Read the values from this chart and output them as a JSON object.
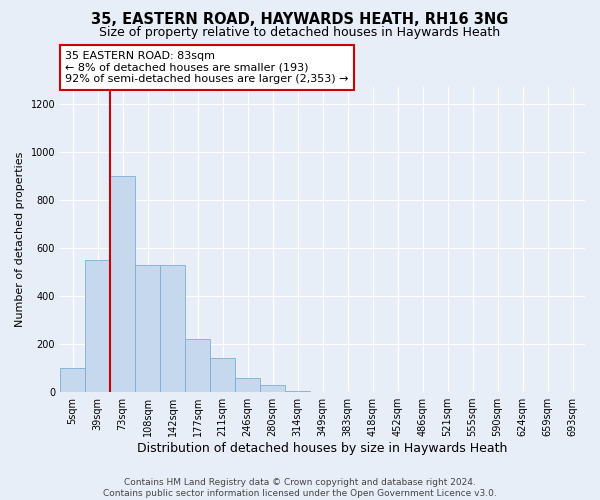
{
  "title": "35, EASTERN ROAD, HAYWARDS HEATH, RH16 3NG",
  "subtitle": "Size of property relative to detached houses in Haywards Heath",
  "xlabel": "Distribution of detached houses by size in Haywards Heath",
  "ylabel": "Number of detached properties",
  "footer_line1": "Contains HM Land Registry data © Crown copyright and database right 2024.",
  "footer_line2": "Contains public sector information licensed under the Open Government Licence v3.0.",
  "bin_labels": [
    "5sqm",
    "39sqm",
    "73sqm",
    "108sqm",
    "142sqm",
    "177sqm",
    "211sqm",
    "246sqm",
    "280sqm",
    "314sqm",
    "349sqm",
    "383sqm",
    "418sqm",
    "452sqm",
    "486sqm",
    "521sqm",
    "555sqm",
    "590sqm",
    "624sqm",
    "659sqm",
    "693sqm"
  ],
  "bar_values": [
    100,
    550,
    900,
    530,
    530,
    220,
    140,
    60,
    30,
    5,
    0,
    0,
    0,
    0,
    0,
    0,
    0,
    0,
    0,
    0,
    0
  ],
  "bar_color": "#c5d8ee",
  "bar_edge_color": "#7aafd4",
  "background_color": "#e8eef8",
  "grid_color": "#ffffff",
  "vline_color": "#cc0000",
  "vline_x_index": 1.5,
  "annotation_line1": "35 EASTERN ROAD: 83sqm",
  "annotation_line2": "← 8% of detached houses are smaller (193)",
  "annotation_line3": "92% of semi-detached houses are larger (2,353) →",
  "annotation_box_facecolor": "#ffffff",
  "annotation_box_edgecolor": "#cc0000",
  "ylim_max": 1270,
  "yticks": [
    0,
    200,
    400,
    600,
    800,
    1000,
    1200
  ],
  "title_fontsize": 10.5,
  "subtitle_fontsize": 9,
  "xlabel_fontsize": 9,
  "ylabel_fontsize": 8,
  "tick_fontsize": 7,
  "annotation_fontsize": 8,
  "footer_fontsize": 6.5
}
